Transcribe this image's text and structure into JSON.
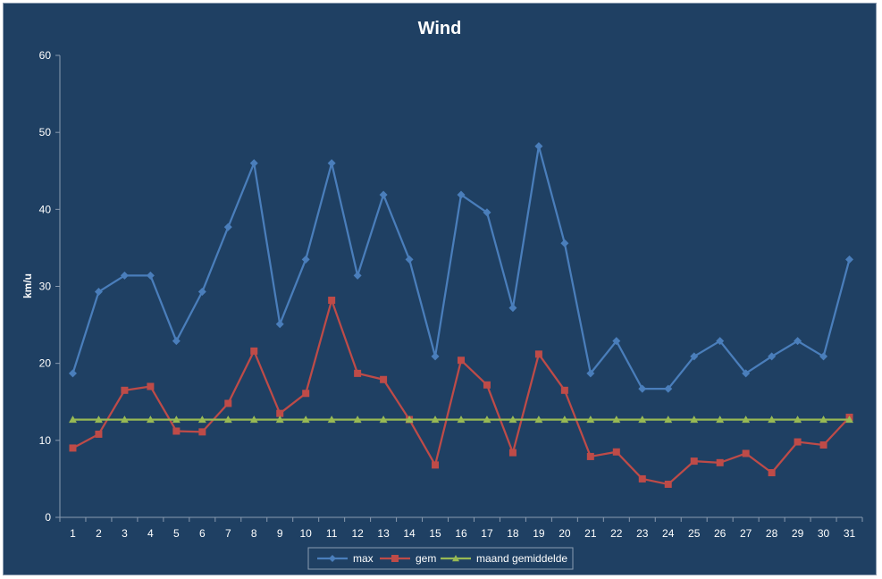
{
  "chart_data": {
    "type": "line",
    "title": "Wind",
    "xlabel": "",
    "ylabel": "km/u",
    "ylim": [
      0,
      60
    ],
    "yticks": [
      0,
      10,
      20,
      30,
      40,
      50,
      60
    ],
    "grid": false,
    "legend_position": "bottom",
    "x": [
      "1",
      "2",
      "3",
      "4",
      "5",
      "6",
      "7",
      "8",
      "9",
      "10",
      "11",
      "12",
      "13",
      "14",
      "15",
      "16",
      "17",
      "18",
      "19",
      "20",
      "21",
      "22",
      "23",
      "24",
      "25",
      "26",
      "27",
      "28",
      "29",
      "30",
      "31"
    ],
    "series": [
      {
        "name": "max",
        "color": "#4a7ebb",
        "marker": "diamond",
        "values": [
          18.7,
          29.3,
          31.4,
          31.4,
          22.9,
          29.3,
          37.7,
          46.0,
          25.1,
          33.5,
          46.0,
          31.4,
          41.9,
          33.5,
          20.9,
          41.9,
          39.6,
          27.2,
          48.2,
          35.6,
          18.7,
          22.9,
          16.7,
          16.7,
          20.9,
          22.9,
          18.7,
          20.9,
          22.9,
          20.9,
          33.5
        ]
      },
      {
        "name": "gem",
        "color": "#be4b48",
        "marker": "square",
        "values": [
          9.0,
          10.8,
          16.5,
          17.0,
          11.2,
          11.1,
          14.8,
          21.6,
          13.5,
          16.1,
          28.2,
          18.7,
          17.9,
          12.7,
          6.8,
          20.4,
          17.2,
          8.4,
          21.2,
          16.5,
          7.9,
          8.5,
          5.0,
          4.3,
          7.3,
          7.1,
          8.3,
          5.8,
          9.8,
          9.4,
          13.0
        ]
      },
      {
        "name": "maand gemiddelde",
        "color": "#98b954",
        "marker": "triangle",
        "values": [
          12.7,
          12.7,
          12.7,
          12.7,
          12.7,
          12.7,
          12.7,
          12.7,
          12.7,
          12.7,
          12.7,
          12.7,
          12.7,
          12.7,
          12.7,
          12.7,
          12.7,
          12.7,
          12.7,
          12.7,
          12.7,
          12.7,
          12.7,
          12.7,
          12.7,
          12.7,
          12.7,
          12.7,
          12.7,
          12.7,
          12.7
        ]
      }
    ]
  }
}
